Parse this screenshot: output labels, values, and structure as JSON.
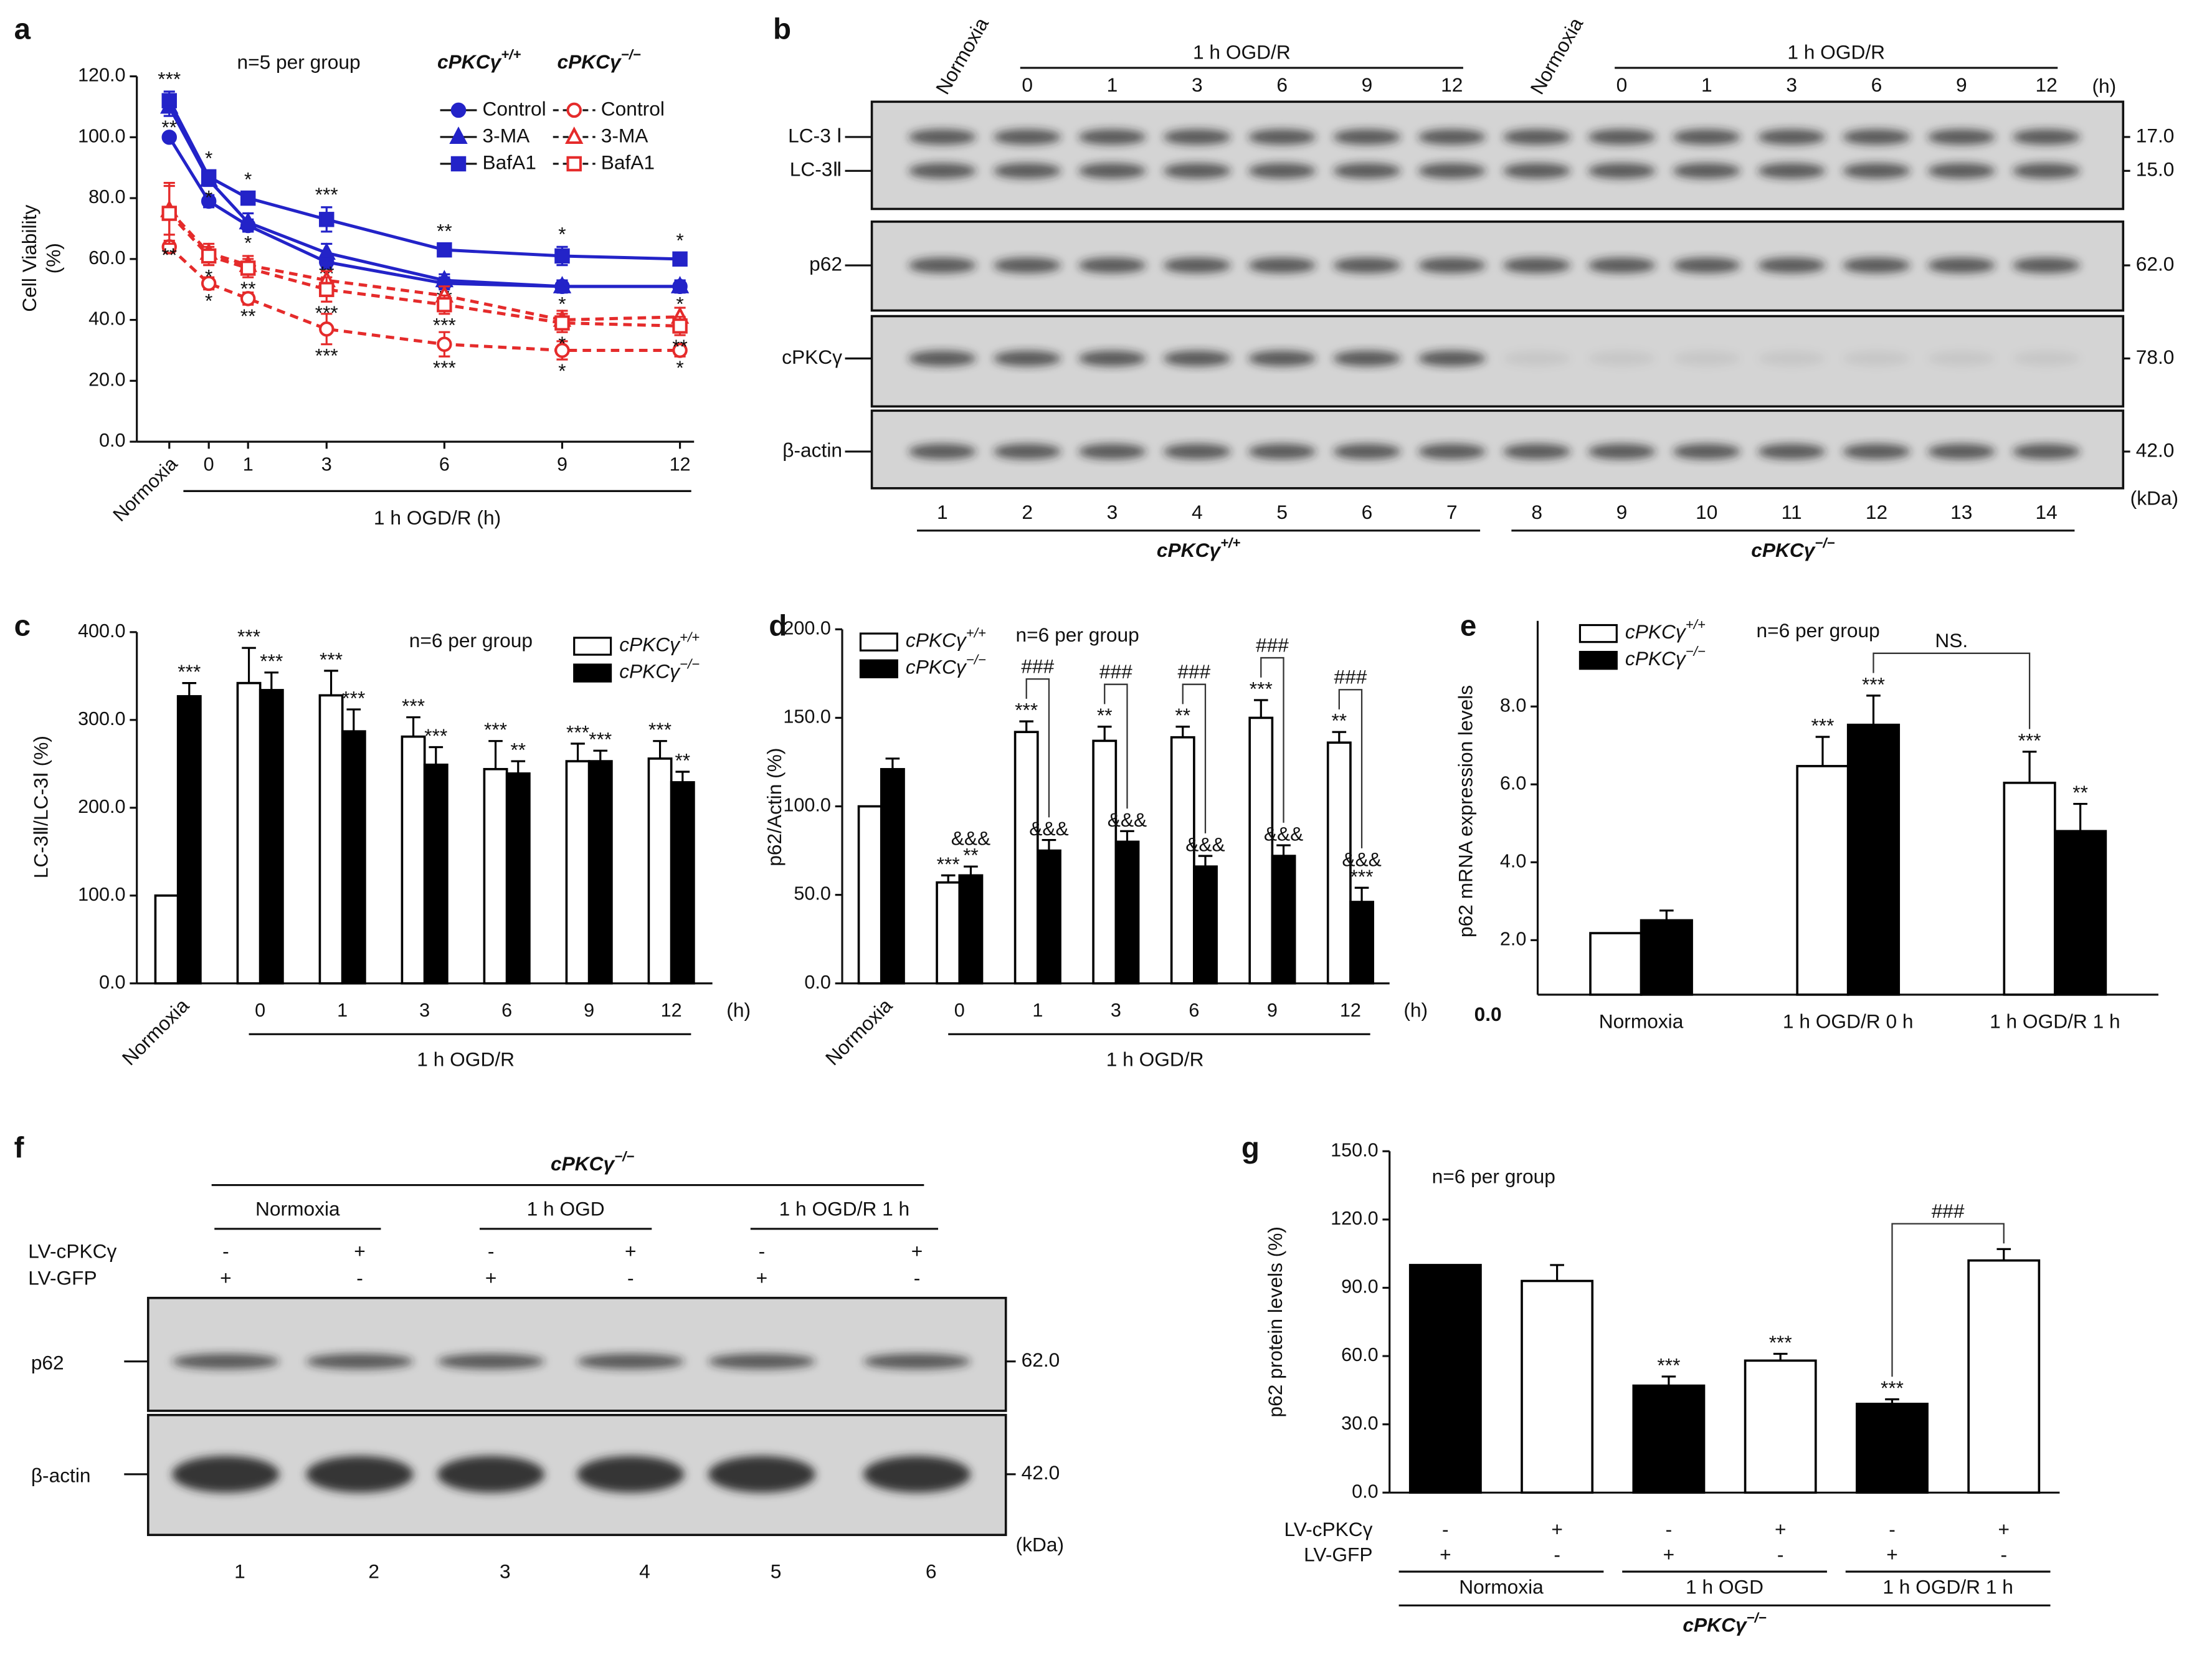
{
  "chart_data": [
    {
      "label": "a",
      "type": "line",
      "annotation": "n=5 per group",
      "ylabel": [
        "Cell Viability",
        "(%)"
      ],
      "xlabel": "1 h OGD/R (h)",
      "sig_color": "#5566d6",
      "categories": [
        "Normoxia",
        "0",
        "1",
        "3",
        "6",
        "9",
        "12"
      ],
      "ylim": [
        0,
        120
      ],
      "yticks": [
        {
          "value": 0,
          "label": "0.0"
        },
        {
          "value": 20,
          "label": "20.0"
        },
        {
          "value": 40,
          "label": "40.0"
        },
        {
          "value": 60,
          "label": "60.0"
        },
        {
          "value": 80,
          "label": "80.0"
        },
        {
          "value": 100,
          "label": "100.0"
        },
        {
          "value": 120,
          "label": "120.0"
        }
      ],
      "groups": [
        {
          "name": {
            "base": "cPKCγ",
            "sup": "+/+"
          },
          "color": "#2323c8",
          "dashed": false,
          "series": [
            {
              "name": "Control",
              "marker": "circle",
              "values": [
                100,
                79,
                71,
                59,
                52,
                51,
                51
              ],
              "errors": [
                0,
                2,
                2,
                2,
                2,
                2,
                2
              ]
            },
            {
              "name": "3-MA",
              "marker": "triangle",
              "values": [
                110,
                86,
                72,
                62,
                53,
                51,
                51
              ],
              "errors": [
                3,
                2,
                3,
                3,
                2,
                2,
                2
              ],
              "sig": [
                "**",
                "*",
                "*",
                "**",
                "**",
                "*",
                "*"
              ]
            },
            {
              "name": "BafA1",
              "marker": "square",
              "values": [
                112,
                87,
                80,
                73,
                63,
                61,
                60
              ],
              "errors": [
                3,
                2,
                2,
                4,
                2,
                3,
                2
              ],
              "sig": [
                "***",
                "*",
                "*",
                "***",
                "**",
                "*",
                "*"
              ]
            }
          ]
        },
        {
          "name": {
            "base": "cPKCγ",
            "sup": "−/−"
          },
          "color": "#e52b2b",
          "dashed": true,
          "series": [
            {
              "name": "Control",
              "marker": "circle",
              "values": [
                64,
                52,
                47,
                37,
                32,
                30,
                30
              ],
              "errors": [
                2,
                2,
                2,
                5,
                4,
                3,
                2
              ],
              "sig": [
                null,
                "*",
                "**",
                "***",
                "***",
                "*",
                "*"
              ]
            },
            {
              "name": "3-MA",
              "marker": "triangle",
              "values": [
                76,
                62,
                58,
                53,
                48,
                40,
                41
              ],
              "errors": [
                8,
                3,
                3,
                3,
                3,
                3,
                3
              ]
            },
            {
              "name": "BafA1",
              "marker": "square",
              "values": [
                75,
                61,
                57,
                50,
                45,
                39,
                38
              ],
              "errors": [
                10,
                3,
                3,
                4,
                3,
                3,
                3
              ],
              "sig": [
                "**",
                "*",
                "**",
                "***",
                "***",
                "*",
                "**"
              ]
            }
          ]
        }
      ]
    },
    {
      "label": "c",
      "type": "bar",
      "annotation": "n=6 per group",
      "ylabel": "LC-3Ⅱ/LC-3Ⅰ (%)",
      "xlabel": "1 h OGD/R",
      "x_unit": "(h)",
      "sig_color": "#444",
      "categories": [
        "Normoxia",
        "0",
        "1",
        "3",
        "6",
        "9",
        "12"
      ],
      "ylim": [
        0,
        400
      ],
      "yticks": [
        {
          "value": 0,
          "label": "0.0"
        },
        {
          "value": 100,
          "label": "100.0"
        },
        {
          "value": 200,
          "label": "200.0"
        },
        {
          "value": 300,
          "label": "300.0"
        },
        {
          "value": 400,
          "label": "400.0"
        }
      ],
      "series": [
        {
          "name": {
            "base": "cPKCγ",
            "sup": "+/+"
          },
          "color": "#ffffff",
          "values": [
            100,
            342,
            328,
            281,
            244,
            253,
            256
          ],
          "errors": [
            0,
            40,
            28,
            22,
            32,
            20,
            20
          ],
          "sig": [
            null,
            "***",
            "***",
            "***",
            "***",
            "***",
            "***"
          ]
        },
        {
          "name": {
            "base": "cPKCγ",
            "sup": "−/−"
          },
          "color": "#000000",
          "values": [
            327,
            334,
            287,
            249,
            239,
            253,
            229
          ],
          "errors": [
            15,
            20,
            25,
            20,
            14,
            12,
            12
          ],
          "sig": [
            "***",
            "***",
            "***",
            "***",
            "**",
            "***",
            "**"
          ]
        }
      ]
    },
    {
      "label": "d",
      "type": "bar",
      "annotation": "n=6 per group",
      "ylabel": "p62/Actin (%)",
      "xlabel": "1 h OGD/R",
      "x_unit": "(h)",
      "sig_color": "#444",
      "categories": [
        "Normoxia",
        "0",
        "1",
        "3",
        "6",
        "9",
        "12"
      ],
      "ylim": [
        0,
        200
      ],
      "yticks": [
        {
          "value": 0,
          "label": "0.0"
        },
        {
          "value": 50,
          "label": "50.0"
        },
        {
          "value": 100,
          "label": "100.0"
        },
        {
          "value": 150,
          "label": "150.0"
        },
        {
          "value": 200,
          "label": "200.0"
        }
      ],
      "brackets": [
        null,
        null,
        "###",
        "###",
        "###",
        "###",
        "###"
      ],
      "series": [
        {
          "name": {
            "base": "cPKCγ",
            "sup": "+/+"
          },
          "color": "#ffffff",
          "values": [
            100,
            57,
            142,
            137,
            139,
            150,
            136
          ],
          "errors": [
            0,
            4,
            6,
            8,
            6,
            10,
            6
          ],
          "sig": [
            null,
            "***",
            "***",
            "**",
            "**",
            "***",
            "**"
          ]
        },
        {
          "name": {
            "base": "cPKCγ",
            "sup": "−/−"
          },
          "color": "#000000",
          "values": [
            121,
            61,
            75,
            80,
            66,
            72,
            46
          ],
          "errors": [
            6,
            5,
            6,
            6,
            6,
            6,
            8
          ],
          "sig": [
            null,
            [
              "&&&",
              "**"
            ],
            "&&&",
            "&&&",
            "&&&",
            "&&&",
            [
              "&&&",
              "***"
            ]
          ]
        }
      ]
    },
    {
      "label": "e",
      "type": "bar",
      "annotation": "n=6 per group",
      "ylabel": "p62 mRNA expression levels",
      "corner_label": "0.0",
      "bracket": "NS.",
      "sig_color": "#444",
      "categories": [
        "Normoxia",
        "1 h OGD/R 0 h",
        "1 h OGD/R 1 h"
      ],
      "ylim": [
        0.6,
        10.2
      ],
      "yticks": [
        {
          "value": 2,
          "label": "2.0"
        },
        {
          "value": 4,
          "label": "4.0"
        },
        {
          "value": 6,
          "label": "6.0"
        },
        {
          "value": 8,
          "label": "8.0"
        }
      ],
      "series": [
        {
          "name": {
            "base": "cPKCγ",
            "sup": "+/+"
          },
          "color": "#ffffff",
          "values": [
            2.18,
            6.47,
            6.04
          ],
          "errors": [
            0,
            0.75,
            0.8
          ],
          "sig": [
            null,
            "***",
            "***"
          ]
        },
        {
          "name": {
            "base": "cPKCγ",
            "sup": "−/−"
          },
          "color": "#000000",
          "values": [
            2.51,
            7.53,
            4.8
          ],
          "errors": [
            0.25,
            0.75,
            0.7
          ],
          "sig": [
            null,
            "***",
            "**"
          ]
        }
      ]
    },
    {
      "label": "g",
      "type": "bar",
      "annotation": "n=6 per group",
      "ylabel": "p62 protein levels (%)",
      "bracket": "###",
      "sig_color": "#444",
      "ylim": [
        0,
        150
      ],
      "yticks": [
        {
          "value": 0,
          "label": "0.0"
        },
        {
          "value": 30,
          "label": "30.0"
        },
        {
          "value": 60,
          "label": "60.0"
        },
        {
          "value": 90,
          "label": "90.0"
        },
        {
          "value": 120,
          "label": "120.0"
        },
        {
          "value": 150,
          "label": "150.0"
        }
      ],
      "series": [
        {
          "colors": [
            "#000000",
            "#ffffff",
            "#000000",
            "#ffffff",
            "#000000",
            "#ffffff"
          ],
          "values": [
            100,
            93,
            47,
            58,
            39,
            102
          ],
          "errors": [
            0,
            7,
            4,
            3,
            2,
            5
          ],
          "sig": [
            null,
            null,
            "***",
            "***",
            "***",
            null
          ]
        }
      ],
      "treatments": [
        {
          "name": "LV-cPKCγ",
          "values": [
            "-",
            "+",
            "-",
            "+",
            "-",
            "+"
          ]
        },
        {
          "name": "LV-GFP",
          "values": [
            "+",
            "-",
            "+",
            "-",
            "+",
            "-"
          ]
        }
      ],
      "groups": [
        "Normoxia",
        "1 h OGD",
        "1 h OGD/R 1 h"
      ],
      "genotype": {
        "base": "cPKCγ",
        "sup": "−/−"
      }
    }
  ],
  "blots": [
    {
      "label": "b",
      "conditions": [
        {
          "control": "Normoxia",
          "treatment": "1 h OGD/R",
          "times": [
            "0",
            "1",
            "3",
            "6",
            "9",
            "12"
          ]
        },
        {
          "control": "Normoxia",
          "treatment": "1 h OGD/R",
          "times": [
            "0",
            "1",
            "3",
            "6",
            "9",
            "12"
          ]
        }
      ],
      "time_unit": "(h)",
      "rows": [
        {
          "names": [
            "LC-3 Ⅰ",
            "LC-3Ⅱ"
          ],
          "kda": [
            "17.0",
            "15.0"
          ]
        },
        {
          "names": [
            "p62"
          ],
          "kda": [
            "62.0"
          ]
        },
        {
          "names": [
            "cPKCγ"
          ],
          "kda": [
            "78.0"
          ]
        },
        {
          "names": [
            "β-actin"
          ],
          "kda": [
            "42.0"
          ]
        }
      ],
      "kda_unit": "(kDa)",
      "lanes": [
        1,
        2,
        3,
        4,
        5,
        6,
        7,
        8,
        9,
        10,
        11,
        12,
        13,
        14
      ],
      "genotypes": [
        {
          "base": "cPKCγ",
          "sup": "+/+"
        },
        {
          "base": "cPKCγ",
          "sup": "−/−"
        }
      ]
    },
    {
      "label": "f",
      "genotype": {
        "base": "cPKCγ",
        "sup": "−/−"
      },
      "groups": [
        "Normoxia",
        "1 h OGD",
        "1 h OGD/R 1 h"
      ],
      "treatments": [
        {
          "name": "LV-cPKCγ",
          "values": [
            "-",
            "+",
            "-",
            "+",
            "-",
            "+"
          ]
        },
        {
          "name": "LV-GFP",
          "values": [
            "+",
            "-",
            "+",
            "-",
            "+",
            "-"
          ]
        }
      ],
      "rows": [
        {
          "names": [
            "p62"
          ],
          "kda": [
            "62.0"
          ]
        },
        {
          "names": [
            "β-actin"
          ],
          "kda": [
            "42.0"
          ]
        }
      ],
      "kda_unit": "(kDa)",
      "lanes": [
        1,
        2,
        3,
        4,
        5,
        6
      ]
    }
  ]
}
